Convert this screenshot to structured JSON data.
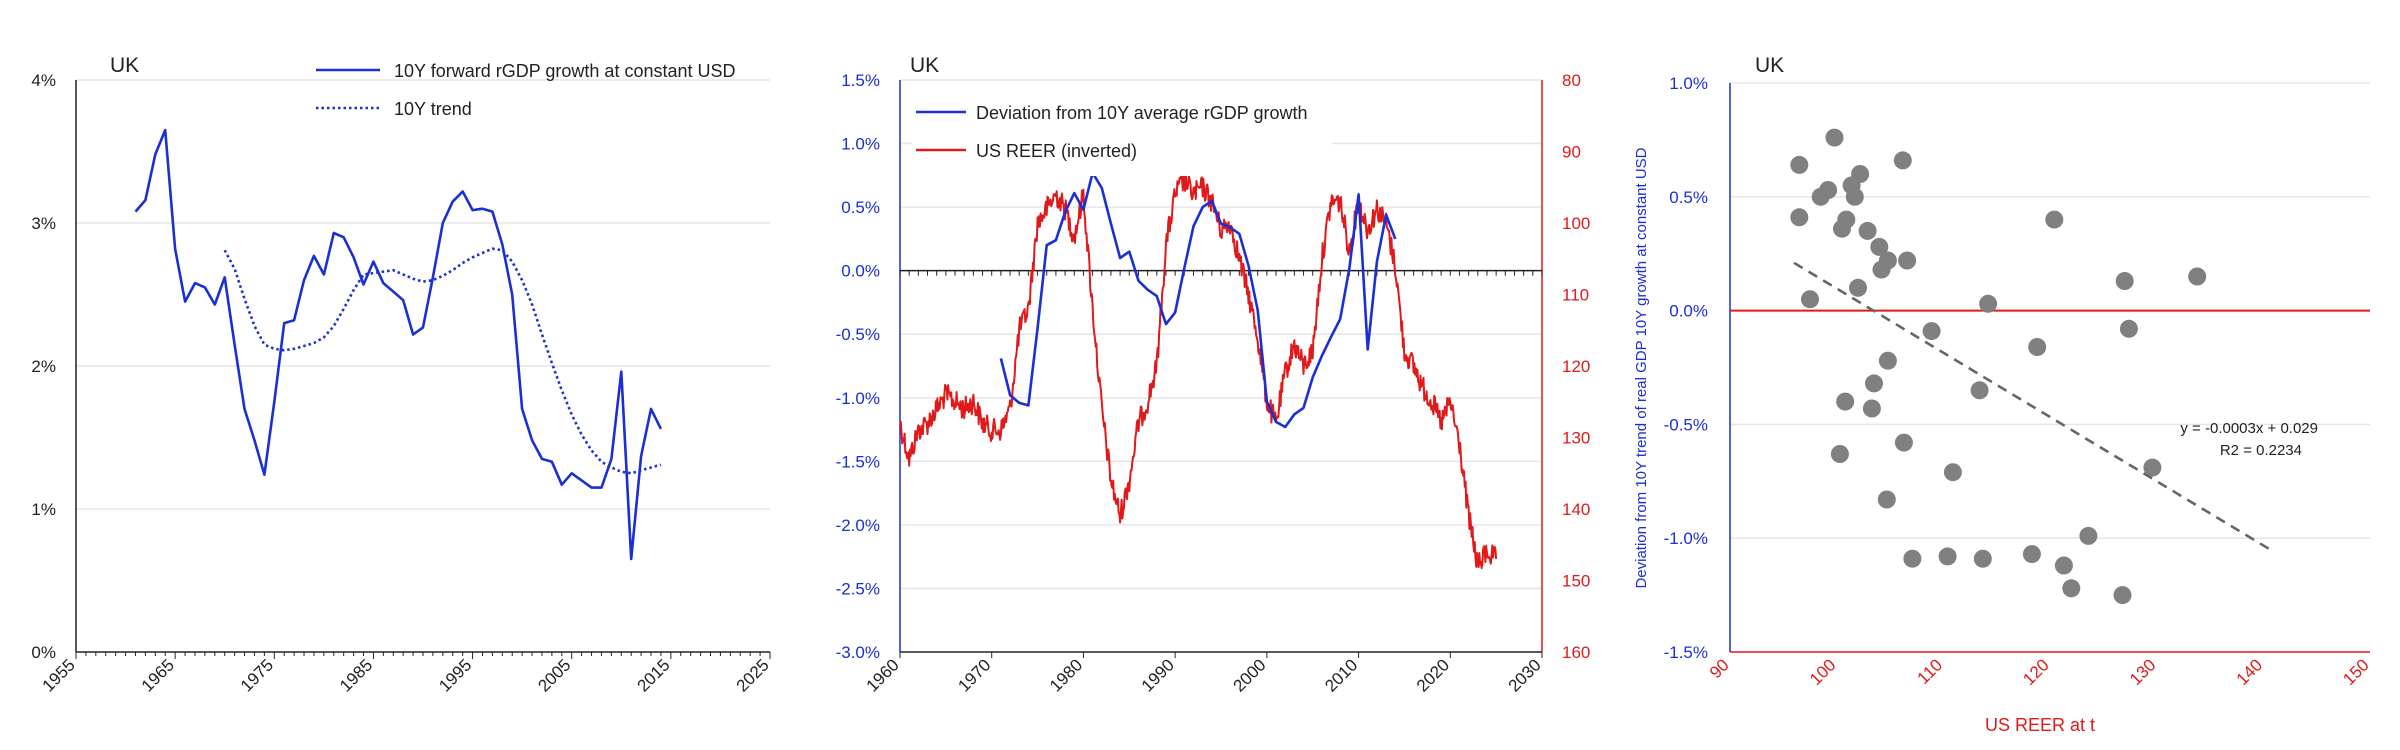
{
  "chart_data": [
    {
      "type": "line",
      "title": "UK",
      "xlabel": "",
      "ylabel": "",
      "xlim": [
        1955,
        2025
      ],
      "ylim": [
        0,
        4
      ],
      "x_ticks": [
        1955,
        1965,
        1975,
        1985,
        1995,
        2005,
        2015,
        2025
      ],
      "y_ticks": [
        "0%",
        "1%",
        "2%",
        "3%",
        "4%"
      ],
      "grid": true,
      "legend_position": "top-right",
      "series": [
        {
          "name": "10Y forward rGDP growth at constant USD",
          "style": "solid",
          "color": "#1a2fd4",
          "x": [
            1961,
            1962,
            1963,
            1964,
            1965,
            1966,
            1967,
            1968,
            1969,
            1970,
            1971,
            1972,
            1973,
            1974,
            1975,
            1976,
            1977,
            1978,
            1979,
            1980,
            1981,
            1982,
            1983,
            1984,
            1985,
            1986,
            1987,
            1988,
            1989,
            1990,
            1991,
            1992,
            1993,
            1994,
            1995,
            1996,
            1997,
            1998,
            1999,
            2000,
            2001,
            2002,
            2003,
            2004,
            2005,
            2006,
            2007,
            2008,
            2009,
            2010,
            2011,
            2012,
            2013,
            2014
          ],
          "y": [
            3.08,
            3.16,
            3.48,
            3.65,
            2.82,
            2.45,
            2.58,
            2.55,
            2.43,
            2.62,
            2.15,
            1.7,
            1.48,
            1.24,
            1.75,
            2.3,
            2.32,
            2.6,
            2.77,
            2.64,
            2.93,
            2.9,
            2.76,
            2.57,
            2.73,
            2.58,
            2.52,
            2.46,
            2.22,
            2.27,
            2.62,
            3.0,
            3.15,
            3.22,
            3.09,
            3.1,
            3.08,
            2.85,
            2.5,
            1.7,
            1.48,
            1.35,
            1.33,
            1.17,
            1.25,
            1.2,
            1.15,
            1.15,
            1.35,
            1.96,
            0.65,
            1.37,
            1.7,
            1.56
          ]
        },
        {
          "name": "10Y trend",
          "style": "dotted",
          "color": "#1a2fd4",
          "x": [
            1970,
            1971,
            1972,
            1973,
            1974,
            1975,
            1976,
            1977,
            1978,
            1979,
            1980,
            1981,
            1982,
            1983,
            1984,
            1985,
            1986,
            1987,
            1988,
            1989,
            1990,
            1991,
            1992,
            1993,
            1994,
            1995,
            1996,
            1997,
            1998,
            1999,
            2000,
            2001,
            2002,
            2003,
            2004,
            2005,
            2006,
            2007,
            2008,
            2009,
            2010,
            2011,
            2012,
            2013,
            2014
          ],
          "y": [
            2.81,
            2.68,
            2.47,
            2.28,
            2.15,
            2.12,
            2.11,
            2.12,
            2.14,
            2.16,
            2.2,
            2.28,
            2.4,
            2.53,
            2.64,
            2.65,
            2.66,
            2.67,
            2.64,
            2.61,
            2.59,
            2.6,
            2.63,
            2.67,
            2.72,
            2.76,
            2.79,
            2.82,
            2.81,
            2.73,
            2.6,
            2.43,
            2.22,
            2.02,
            1.83,
            1.66,
            1.52,
            1.41,
            1.33,
            1.29,
            1.26,
            1.25,
            1.27,
            1.29,
            1.31
          ]
        }
      ]
    },
    {
      "type": "line",
      "title": "UK",
      "xlabel": "",
      "ylabel": "",
      "ylabel_right": "",
      "xlim": [
        1960,
        2030
      ],
      "ylim": [
        -3,
        1.5
      ],
      "ylim_right": [
        80,
        160
      ],
      "right_axis_inverted": true,
      "x_ticks": [
        1960,
        1970,
        1980,
        1990,
        2000,
        2010,
        2020,
        2030
      ],
      "y_ticks": [
        "-3.0%",
        "-2.5%",
        "-2.0%",
        "-1.5%",
        "-1.0%",
        "-0.5%",
        "0.0%",
        "0.5%",
        "1.0%",
        "1.5%"
      ],
      "y_ticks_right": [
        "80",
        "90",
        "100",
        "110",
        "120",
        "130",
        "140",
        "150",
        "160"
      ],
      "grid": true,
      "legend_position": "top-left",
      "series": [
        {
          "name": "Deviation from 10Y average rGDP growth",
          "axis": "left",
          "color": "#1a2fd4",
          "x": [
            1971,
            1972,
            1973,
            1974,
            1975,
            1976,
            1977,
            1978,
            1979,
            1980,
            1981,
            1982,
            1983,
            1984,
            1985,
            1986,
            1987,
            1988,
            1989,
            1990,
            1991,
            1992,
            1993,
            1994,
            1995,
            1996,
            1997,
            1998,
            1999,
            2000,
            2001,
            2002,
            2003,
            2004,
            2005,
            2006,
            2007,
            2008,
            2009,
            2010,
            2011,
            2012,
            2013,
            2014
          ],
          "y": [
            -0.69,
            -0.98,
            -1.04,
            -1.06,
            -0.45,
            0.2,
            0.24,
            0.46,
            0.61,
            0.48,
            0.77,
            0.65,
            0.37,
            0.1,
            0.15,
            -0.08,
            -0.15,
            -0.2,
            -0.42,
            -0.33,
            0.02,
            0.35,
            0.5,
            0.55,
            0.37,
            0.34,
            0.29,
            0.04,
            -0.31,
            -1.03,
            -1.19,
            -1.23,
            -1.13,
            -1.08,
            -0.84,
            -0.67,
            -0.52,
            -0.38,
            0.02,
            0.6,
            -0.62,
            0.07,
            0.44,
            0.25
          ]
        },
        {
          "name": "US REER (inverted)",
          "axis": "right",
          "color": "#e0191b",
          "anchors_x": [
            1960,
            1961,
            1962,
            1963,
            1964,
            1965,
            1966,
            1967,
            1968,
            1969,
            1970,
            1971,
            1972,
            1973,
            1974,
            1975,
            1976,
            1977,
            1978,
            1979,
            1980,
            1981,
            1982,
            1983,
            1984,
            1985,
            1986,
            1987,
            1988,
            1989,
            1990,
            1991,
            1992,
            1993,
            1994,
            1995,
            1996,
            1997,
            1998,
            1999,
            2000,
            2001,
            2002,
            2003,
            2004,
            2005,
            2006,
            2007,
            2008,
            2009,
            2010,
            2011,
            2012,
            2013,
            2014,
            2015,
            2016,
            2017,
            2018,
            2019,
            2020,
            2021,
            2022,
            2023,
            2024,
            2025
          ],
          "anchors_y": [
            128,
            133,
            129,
            128,
            126,
            124,
            125,
            126,
            125,
            128,
            129,
            129,
            126,
            115,
            112,
            100,
            98,
            96,
            98,
            102,
            96,
            112,
            126,
            136,
            141,
            136,
            128,
            125,
            120,
            103,
            96,
            94,
            96,
            95,
            97,
            101,
            100,
            105,
            110,
            116,
            125,
            128,
            121,
            117,
            120,
            118,
            105,
            97,
            97,
            104,
            97,
            101,
            98,
            100,
            106,
            118,
            120,
            123,
            125,
            128,
            125,
            131,
            141,
            148,
            146,
            147
          ]
        }
      ]
    },
    {
      "type": "scatter",
      "title": "UK",
      "xlabel": "US REER at t",
      "ylabel": "Deviation from 10Y trend of real GDP 10Y growth at constant USD",
      "xlim": [
        90,
        150
      ],
      "ylim": [
        -1.5,
        1
      ],
      "x_ticks": [
        "90",
        "100",
        "110",
        "120",
        "130",
        "140",
        "150"
      ],
      "y_ticks": [
        "-1.5%",
        "-1.0%",
        "-0.5%",
        "0.0%",
        "0.5%",
        "1.0%"
      ],
      "grid": true,
      "zero_line_color": "#e0191b",
      "trendline": {
        "equation": "y = -0.0003x + 0.029",
        "r2_label": "R",
        "r2_value": "2 = 0.2234",
        "x_range": [
          96,
          141
        ],
        "y_start": 0.21,
        "y_end": -1.06
      },
      "points": [
        {
          "x": 96.5,
          "y": 0.64
        },
        {
          "x": 96.5,
          "y": 0.41
        },
        {
          "x": 97.5,
          "y": 0.05
        },
        {
          "x": 98.5,
          "y": 0.5
        },
        {
          "x": 99.2,
          "y": 0.53
        },
        {
          "x": 99.8,
          "y": 0.76
        },
        {
          "x": 100.5,
          "y": 0.36
        },
        {
          "x": 100.9,
          "y": 0.4
        },
        {
          "x": 101.4,
          "y": 0.55
        },
        {
          "x": 101.7,
          "y": 0.5
        },
        {
          "x": 102.2,
          "y": 0.6
        },
        {
          "x": 102.9,
          "y": 0.35
        },
        {
          "x": 102.0,
          "y": 0.1
        },
        {
          "x": 104.0,
          "y": 0.28
        },
        {
          "x": 104.2,
          "y": 0.18
        },
        {
          "x": 104.8,
          "y": 0.22
        },
        {
          "x": 106.2,
          "y": 0.66
        },
        {
          "x": 106.6,
          "y": 0.22
        },
        {
          "x": 100.8,
          "y": -0.4
        },
        {
          "x": 100.3,
          "y": -0.63
        },
        {
          "x": 103.5,
          "y": -0.32
        },
        {
          "x": 103.3,
          "y": -0.43
        },
        {
          "x": 104.8,
          "y": -0.22
        },
        {
          "x": 106.3,
          "y": -0.58
        },
        {
          "x": 104.7,
          "y": -0.83
        },
        {
          "x": 108.9,
          "y": -0.09
        },
        {
          "x": 110.9,
          "y": -0.71
        },
        {
          "x": 107.1,
          "y": -1.09
        },
        {
          "x": 110.4,
          "y": -1.08
        },
        {
          "x": 113.4,
          "y": -0.35
        },
        {
          "x": 114.2,
          "y": 0.03
        },
        {
          "x": 113.7,
          "y": -1.09
        },
        {
          "x": 118.3,
          "y": -1.07
        },
        {
          "x": 118.8,
          "y": -0.16
        },
        {
          "x": 120.4,
          "y": 0.4
        },
        {
          "x": 121.3,
          "y": -1.12
        },
        {
          "x": 122.0,
          "y": -1.22
        },
        {
          "x": 123.6,
          "y": -0.99
        },
        {
          "x": 126.8,
          "y": -1.25
        },
        {
          "x": 127.0,
          "y": 0.13
        },
        {
          "x": 127.4,
          "y": -0.08
        },
        {
          "x": 129.6,
          "y": -0.69
        },
        {
          "x": 133.8,
          "y": 0.15
        }
      ]
    }
  ]
}
